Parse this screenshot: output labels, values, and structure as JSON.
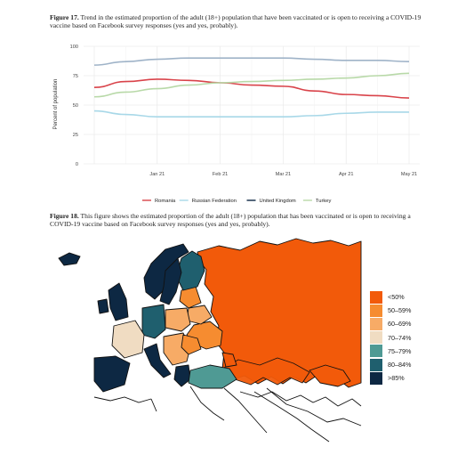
{
  "figure17": {
    "label": "Figure 17.",
    "caption": "Trend in the estimated proportion of the adult (18+) population that have been vaccinated or is open to receiving a COVID-19 vaccine based on Facebook survey responses (yes and yes, probably)."
  },
  "figure18": {
    "label": "Figure 18.",
    "caption": "This figure shows the estimated proportion of the adult (18+) population that has been vaccinated or is open to receiving a COVID-19 vaccine based on Facebook survey responses (yes and yes, probably).",
    "legend": [
      {
        "label": "<50%",
        "color": "#f25a0a"
      },
      {
        "label": "50–59%",
        "color": "#f68c30"
      },
      {
        "label": "60–69%",
        "color": "#f7ab66"
      },
      {
        "label": "70–74%",
        "color": "#f0dcc2"
      },
      {
        "label": "75–79%",
        "color": "#4f9a94"
      },
      {
        "label": "80–84%",
        "color": "#1f5f6e"
      },
      {
        "label": ">85%",
        "color": "#0d2843"
      }
    ]
  },
  "chart_data": {
    "type": "line",
    "title": "",
    "xlabel": "",
    "ylabel": "Percent of population",
    "ylim": [
      0,
      100
    ],
    "yticks": [
      0,
      25,
      50,
      75,
      100
    ],
    "xticks": [
      "Jan 21",
      "Feb 21",
      "Mar 21",
      "Apr 21",
      "May 21"
    ],
    "x": [
      "Dec 21",
      "Jan 7",
      "Jan 21",
      "Feb 7",
      "Feb 21",
      "Mar 7",
      "Mar 21",
      "Apr 7",
      "Apr 21",
      "May 7",
      "May 21"
    ],
    "grid": true,
    "legend_position": "bottom",
    "series": [
      {
        "name": "Romania",
        "color": "#d9434a",
        "values": [
          65,
          70,
          72,
          71,
          69,
          67,
          66,
          62,
          59,
          58,
          56
        ]
      },
      {
        "name": "Russian Federation",
        "color": "#a8d8e8",
        "values": [
          45,
          42,
          40,
          40,
          40,
          40,
          40,
          41,
          43,
          44,
          44
        ]
      },
      {
        "name": "United Kingdom",
        "color": "#9fb3c8",
        "values": [
          84,
          87,
          89,
          90,
          90,
          90,
          90,
          89,
          88,
          88,
          87
        ]
      },
      {
        "name": "Turkey",
        "color": "#b8d9a8",
        "values": [
          57,
          61,
          64,
          67,
          69,
          70,
          71,
          72,
          73,
          75,
          77
        ]
      }
    ]
  }
}
